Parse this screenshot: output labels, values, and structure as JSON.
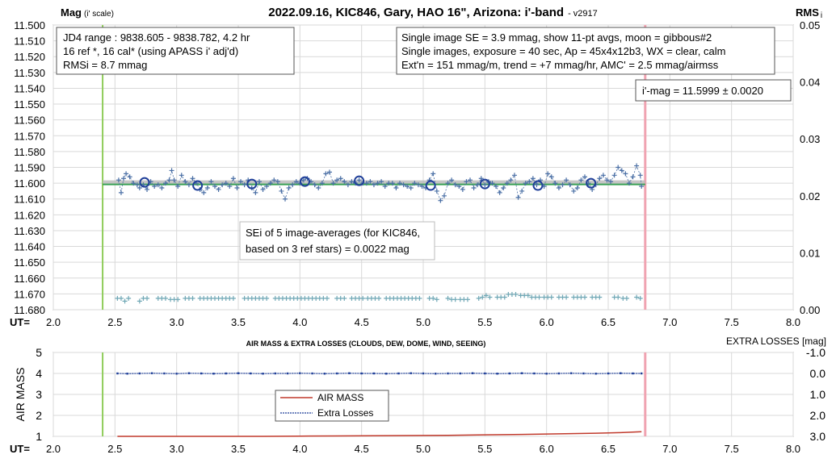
{
  "chart_data": [
    {
      "type": "scatter",
      "title": "2022.09.16, KIC846, Gary, HAO 16\", Arizona: i'-band",
      "version": "- v2917",
      "ylabel": "Mag",
      "ylabel_sub": "(i' scale)",
      "y2label": "RMS",
      "y2label_sub": "i",
      "xlabel": "UT=",
      "xlim": [
        2.0,
        8.0
      ],
      "x_ticks": [
        "2.0",
        "2.5",
        "3.0",
        "3.5",
        "4.0",
        "4.5",
        "5.0",
        "5.5",
        "6.0",
        "6.5",
        "7.0",
        "7.5",
        "8.0"
      ],
      "ylim": [
        11.5,
        11.68
      ],
      "y_reversed": true,
      "y_ticks": [
        "11.500",
        "11.510",
        "11.520",
        "11.530",
        "11.540",
        "11.550",
        "11.560",
        "11.570",
        "11.580",
        "11.590",
        "11.600",
        "11.610",
        "11.620",
        "11.630",
        "11.640",
        "11.650",
        "11.660",
        "11.670",
        "11.680"
      ],
      "y2lim": [
        0.0,
        0.05
      ],
      "y2_ticks": [
        "0.00",
        "0.01",
        "0.02",
        "0.03",
        "0.04",
        "0.05"
      ],
      "grid": true,
      "info_left": [
        "JD4 range : 9838.605 - 9838.782, 4.2  hr",
        "16 ref *, 16 cal* (using APASS i' adj'd)",
        "RMSi = 8.7 mmag"
      ],
      "info_right": [
        "Single image SE = 3.9 mmag, show 11-pt avgs, moon = gibbous#2",
        "Single images, exposure = 40 sec, Ap = 45x4x12b3, WX = clear, calm",
        "Ext'n = 151 mmag/m, trend = +7 mmag/hr, AMC' = 2.5 mmag/airmss"
      ],
      "mag_result": "i'-mag = 11.5999 ± 0.0020",
      "sei_note": [
        "SEi of 5 image-averages (for KIC846,",
        "based on 3 ref stars) = 0.0022 mag"
      ],
      "green_vline_x": 2.4,
      "red_vline_x": 6.8,
      "fit_line": {
        "x": [
          2.4,
          6.8
        ],
        "y": [
          11.6,
          11.6
        ]
      },
      "colors": {
        "single": "#4a6fa5",
        "avg": "#1f3f99",
        "rms": "#6fa7b5",
        "fit": "#3aa055",
        "fitband": "#b0b0b0",
        "green": "#8fcc5a",
        "red": "#f0a3b1"
      },
      "series": [
        {
          "name": "single images",
          "x": [
            2.53,
            2.55,
            2.57,
            2.59,
            2.62,
            2.65,
            2.68,
            2.7,
            2.73,
            2.76,
            2.79,
            2.82,
            2.85,
            2.88,
            2.91,
            2.94,
            2.96,
            2.98,
            3.01,
            3.04,
            3.07,
            3.1,
            3.13,
            3.16,
            3.19,
            3.22,
            3.25,
            3.28,
            3.31,
            3.34,
            3.37,
            3.4,
            3.43,
            3.46,
            3.49,
            3.52,
            3.55,
            3.58,
            3.61,
            3.64,
            3.67,
            3.7,
            3.73,
            3.76,
            3.79,
            3.82,
            3.85,
            3.88,
            3.91,
            3.94,
            3.97,
            4.0,
            4.03,
            4.06,
            4.09,
            4.12,
            4.15,
            4.18,
            4.21,
            4.24,
            4.27,
            4.3,
            4.33,
            4.36,
            4.39,
            4.42,
            4.45,
            4.48,
            4.51,
            4.54,
            4.57,
            4.6,
            4.63,
            4.66,
            4.69,
            4.72,
            4.75,
            4.78,
            4.81,
            4.84,
            4.87,
            4.9,
            4.93,
            4.96,
            4.99,
            5.02,
            5.05,
            5.08,
            5.11,
            5.14,
            5.17,
            5.2,
            5.23,
            5.26,
            5.29,
            5.32,
            5.35,
            5.38,
            5.41,
            5.44,
            5.47,
            5.5,
            5.53,
            5.56,
            5.59,
            5.62,
            5.65,
            5.68,
            5.71,
            5.74,
            5.77,
            5.8,
            5.83,
            5.86,
            5.89,
            5.92,
            5.95,
            5.98,
            6.01,
            6.04,
            6.07,
            6.1,
            6.13,
            6.16,
            6.19,
            6.22,
            6.25,
            6.28,
            6.31,
            6.34,
            6.37,
            6.4,
            6.43,
            6.46,
            6.49,
            6.52,
            6.55,
            6.58,
            6.61,
            6.64,
            6.67,
            6.7,
            6.73,
            6.76,
            6.77
          ],
          "y": [
            11.598,
            11.606,
            11.597,
            11.594,
            11.596,
            11.6,
            11.601,
            11.603,
            11.601,
            11.604,
            11.599,
            11.602,
            11.601,
            11.603,
            11.6,
            11.598,
            11.592,
            11.598,
            11.602,
            11.595,
            11.599,
            11.601,
            11.597,
            11.6,
            11.604,
            11.606,
            11.603,
            11.599,
            11.602,
            11.604,
            11.601,
            11.6,
            11.602,
            11.597,
            11.603,
            11.599,
            11.601,
            11.598,
            11.603,
            11.606,
            11.599,
            11.604,
            11.602,
            11.6,
            11.598,
            11.599,
            11.605,
            11.61,
            11.603,
            11.601,
            11.599,
            11.6,
            11.598,
            11.597,
            11.599,
            11.601,
            11.603,
            11.6,
            11.594,
            11.593,
            11.6,
            11.598,
            11.597,
            11.599,
            11.601,
            11.599,
            11.6,
            11.598,
            11.6,
            11.6,
            11.599,
            11.601,
            11.6,
            11.599,
            11.602,
            11.6,
            11.6,
            11.603,
            11.6,
            11.601,
            11.602,
            11.603,
            11.6,
            11.601,
            11.602,
            11.603,
            11.598,
            11.594,
            11.605,
            11.611,
            11.608,
            11.6,
            11.598,
            11.601,
            11.602,
            11.604,
            11.599,
            11.598,
            11.603,
            11.601,
            11.597,
            11.601,
            11.599,
            11.6,
            11.602,
            11.606,
            11.603,
            11.6,
            11.598,
            11.595,
            11.609,
            11.605,
            11.6,
            11.599,
            11.597,
            11.601,
            11.598,
            11.602,
            11.594,
            11.596,
            11.6,
            11.603,
            11.601,
            11.598,
            11.601,
            11.605,
            11.603,
            11.598,
            11.596,
            11.6,
            11.604,
            11.601,
            11.597,
            11.595,
            11.598,
            11.599,
            11.595,
            11.59,
            11.592,
            11.594,
            11.6,
            11.596,
            11.589,
            11.595,
            11.602
          ]
        },
        {
          "name": "11-pt averages",
          "x": [
            2.74,
            3.17,
            3.61,
            4.04,
            4.48,
            5.06,
            5.5,
            5.93,
            6.36
          ],
          "y": [
            11.5995,
            11.6015,
            11.6005,
            11.599,
            11.5985,
            11.6015,
            11.6005,
            11.6015,
            11.6
          ]
        },
        {
          "name": "RMS",
          "x": [
            2.52,
            2.55,
            2.58,
            2.61,
            2.7,
            2.73,
            2.76,
            2.85,
            2.88,
            2.91,
            2.95,
            2.98,
            3.01,
            3.07,
            3.1,
            3.13,
            3.19,
            3.22,
            3.25,
            3.28,
            3.31,
            3.34,
            3.37,
            3.4,
            3.43,
            3.46,
            3.55,
            3.58,
            3.61,
            3.64,
            3.67,
            3.7,
            3.73,
            3.8,
            3.83,
            3.86,
            3.89,
            3.92,
            3.95,
            3.98,
            4.01,
            4.04,
            4.07,
            4.1,
            4.13,
            4.16,
            4.19,
            4.22,
            4.3,
            4.33,
            4.36,
            4.42,
            4.45,
            4.48,
            4.51,
            4.55,
            4.58,
            4.61,
            4.64,
            4.7,
            4.73,
            4.76,
            4.79,
            4.82,
            4.85,
            4.88,
            4.91,
            4.94,
            4.97,
            5.05,
            5.08,
            5.11,
            5.2,
            5.23,
            5.26,
            5.3,
            5.33,
            5.36,
            5.45,
            5.48,
            5.51,
            5.54,
            5.6,
            5.63,
            5.66,
            5.69,
            5.72,
            5.75,
            5.79,
            5.82,
            5.85,
            5.88,
            5.91,
            5.94,
            5.98,
            6.01,
            6.04,
            6.1,
            6.13,
            6.16,
            6.22,
            6.25,
            6.28,
            6.31,
            6.37,
            6.4,
            6.43,
            6.55,
            6.58,
            6.62,
            6.65,
            6.73,
            6.76
          ],
          "y": [
            0.002,
            0.002,
            0.0015,
            0.002,
            0.0015,
            0.002,
            0.002,
            0.002,
            0.002,
            0.002,
            0.0018,
            0.0018,
            0.0018,
            0.002,
            0.002,
            0.002,
            0.002,
            0.002,
            0.002,
            0.002,
            0.002,
            0.002,
            0.002,
            0.002,
            0.002,
            0.002,
            0.002,
            0.002,
            0.002,
            0.002,
            0.002,
            0.002,
            0.002,
            0.002,
            0.002,
            0.002,
            0.002,
            0.002,
            0.002,
            0.002,
            0.002,
            0.002,
            0.002,
            0.002,
            0.002,
            0.002,
            0.002,
            0.002,
            0.002,
            0.002,
            0.002,
            0.002,
            0.002,
            0.002,
            0.002,
            0.002,
            0.002,
            0.002,
            0.002,
            0.002,
            0.002,
            0.002,
            0.002,
            0.002,
            0.002,
            0.002,
            0.002,
            0.002,
            0.002,
            0.002,
            0.002,
            0.0018,
            0.002,
            0.0018,
            0.0018,
            0.0018,
            0.0018,
            0.0018,
            0.002,
            0.0022,
            0.0025,
            0.0022,
            0.0022,
            0.0022,
            0.0022,
            0.0027,
            0.0027,
            0.0027,
            0.0025,
            0.0025,
            0.0025,
            0.0022,
            0.0022,
            0.0022,
            0.0022,
            0.0022,
            0.0022,
            0.0022,
            0.0022,
            0.0022,
            0.0022,
            0.0022,
            0.0022,
            0.0022,
            0.0022,
            0.0022,
            0.0022,
            0.0022,
            0.0022,
            0.002,
            0.002,
            0.0022,
            0.002
          ]
        }
      ]
    },
    {
      "type": "line",
      "title": "AIR MASS & EXTRA LOSSES (CLOUDS, DEW, DOME, WIND, SEEING)",
      "ylabel": "AIR MASS",
      "y2label": "EXTRA LOSSES [mag]",
      "xlabel": "UT=",
      "xlim": [
        2.0,
        8.0
      ],
      "x_ticks": [
        "2.0",
        "2.5",
        "3.0",
        "3.5",
        "4.0",
        "4.5",
        "5.0",
        "5.5",
        "6.0",
        "6.5",
        "7.0",
        "7.5",
        "8.0"
      ],
      "ylim": [
        1,
        5
      ],
      "y_ticks": [
        "1",
        "2",
        "3",
        "4",
        "5"
      ],
      "y2lim": [
        -1.0,
        3.0
      ],
      "y2_reversed": true,
      "y2_ticks": [
        "-1.0",
        "0.0",
        "1.0",
        "2.0",
        "3.0"
      ],
      "green_vline_x": 2.4,
      "red_vline_x": 6.8,
      "legend_position": "center",
      "legend": [
        "AIR MASS",
        "Extra Losses"
      ],
      "series": [
        {
          "name": "AIR MASS",
          "x": [
            2.52,
            2.8,
            3.1,
            3.4,
            3.7,
            4.0,
            4.3,
            4.6,
            4.9,
            5.2,
            5.5,
            5.8,
            6.0,
            6.2,
            6.4,
            6.6,
            6.77
          ],
          "y": [
            1.0,
            1.0,
            1.0,
            1.0,
            1.0,
            1.01,
            1.02,
            1.03,
            1.04,
            1.05,
            1.07,
            1.09,
            1.11,
            1.13,
            1.15,
            1.18,
            1.22
          ]
        },
        {
          "name": "Extra Losses",
          "x": [
            2.52,
            2.6,
            2.7,
            2.8,
            2.9,
            3.0,
            3.1,
            3.2,
            3.3,
            3.4,
            3.5,
            3.6,
            3.7,
            3.8,
            3.9,
            4.0,
            4.1,
            4.2,
            4.3,
            4.4,
            4.5,
            4.6,
            4.7,
            4.8,
            4.9,
            5.0,
            5.1,
            5.2,
            5.3,
            5.4,
            5.5,
            5.6,
            5.7,
            5.8,
            5.9,
            6.0,
            6.1,
            6.2,
            6.3,
            6.4,
            6.5,
            6.6,
            6.7,
            6.77
          ],
          "y": [
            0.0,
            0.01,
            0.0,
            -0.01,
            0.0,
            0.01,
            -0.01,
            0.0,
            0.01,
            0.0,
            -0.01,
            0.0,
            0.01,
            0.0,
            0.0,
            -0.01,
            0.0,
            0.01,
            0.0,
            -0.01,
            0.0,
            0.0,
            0.01,
            0.0,
            -0.01,
            0.0,
            0.01,
            0.0,
            0.0,
            -0.01,
            0.0,
            0.01,
            0.0,
            -0.01,
            0.0,
            0.01,
            0.0,
            -0.01,
            0.0,
            0.01,
            0.0,
            -0.01,
            0.0,
            0.0
          ]
        }
      ]
    }
  ]
}
